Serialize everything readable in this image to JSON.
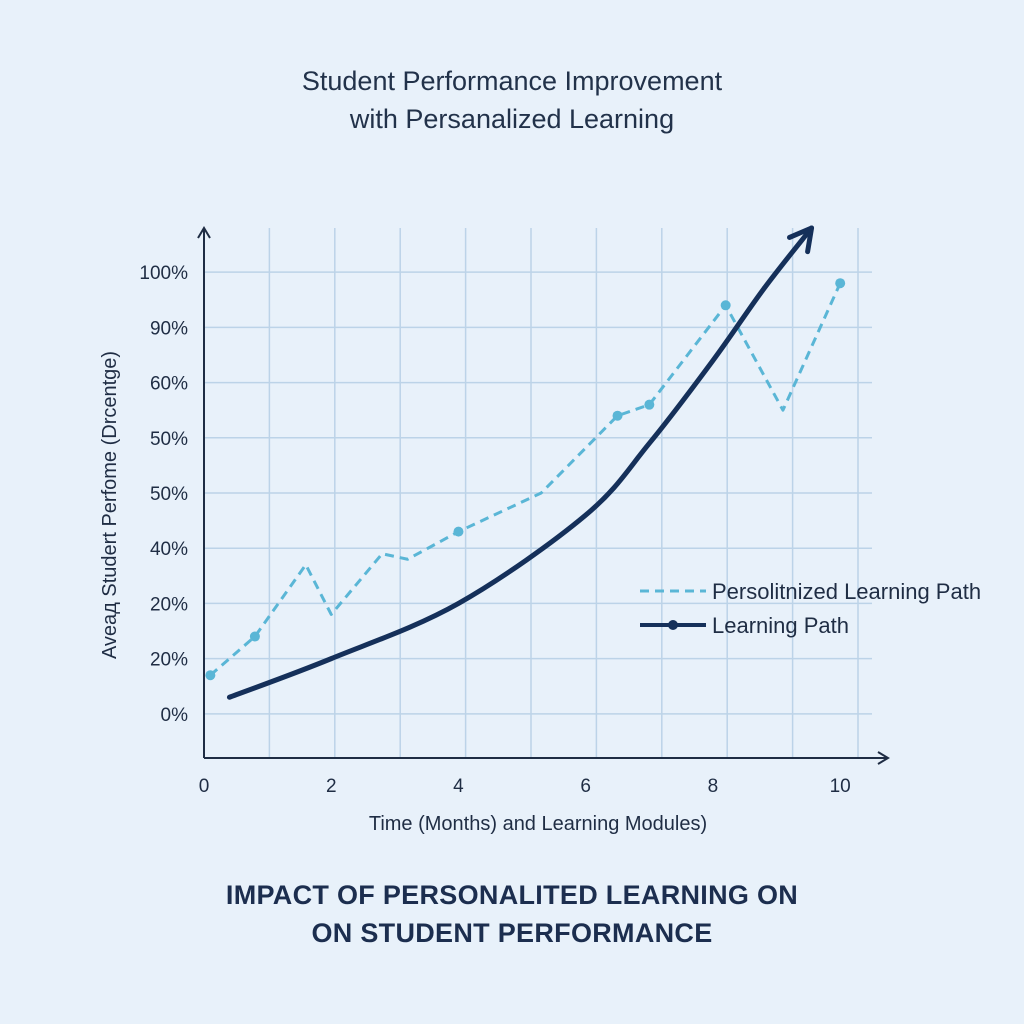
{
  "title": {
    "line1": "Student Performance Improvement",
    "line2": "with Persanalized Learning"
  },
  "footer": {
    "line1": "IMPACT OF PERSONALITED LEARNING ON",
    "line2": "ON STUDENT PERFORMANCE"
  },
  "colors": {
    "background": "#e8f1fa",
    "grid": "#bcd3e8",
    "axis": "#1f2d44",
    "personalized": "#5ab6d6",
    "learning_path": "#15305a"
  },
  "chart_data": {
    "type": "line",
    "title": "Student Performance Improvement with Persanalized Learning",
    "xlabel": "Time (Months) and Learning Modules)",
    "ylabel": "Aveaд Studert Perfome (Drcentge)",
    "xlim": [
      0,
      10.5
    ],
    "x_ticks": [
      0,
      2,
      4,
      6,
      8,
      10
    ],
    "y_tick_labels": [
      "0%",
      "20%",
      "20%",
      "40%",
      "50%",
      "50%",
      "60%",
      "90%",
      "100%"
    ],
    "y_tick_positions": [
      0,
      1,
      2,
      3,
      4,
      5,
      6,
      7,
      8
    ],
    "ylim": [
      -0.8,
      8.8
    ],
    "grid": true,
    "legend": "right",
    "series": [
      {
        "name": "Persolitnized Learning Path",
        "style": "dashed-with-markers",
        "x": [
          0.1,
          0.8,
          1.6,
          2.0,
          2.8,
          3.2,
          4.0,
          5.3,
          6.5,
          7.0,
          8.2,
          9.1,
          10.0
        ],
        "y": [
          0.7,
          1.4,
          2.7,
          1.8,
          2.9,
          2.8,
          3.3,
          4.0,
          5.4,
          5.6,
          7.4,
          5.5,
          7.8
        ],
        "marker_indices": [
          0,
          1,
          6,
          8,
          9,
          10,
          12
        ]
      },
      {
        "name": "Learning Path",
        "style": "solid-arrow",
        "x": [
          0.4,
          2.0,
          4.0,
          6.0,
          7.0,
          8.0,
          8.8,
          9.55
        ],
        "y": [
          0.3,
          1.0,
          2.0,
          3.6,
          4.9,
          6.4,
          7.7,
          8.8
        ]
      }
    ]
  }
}
